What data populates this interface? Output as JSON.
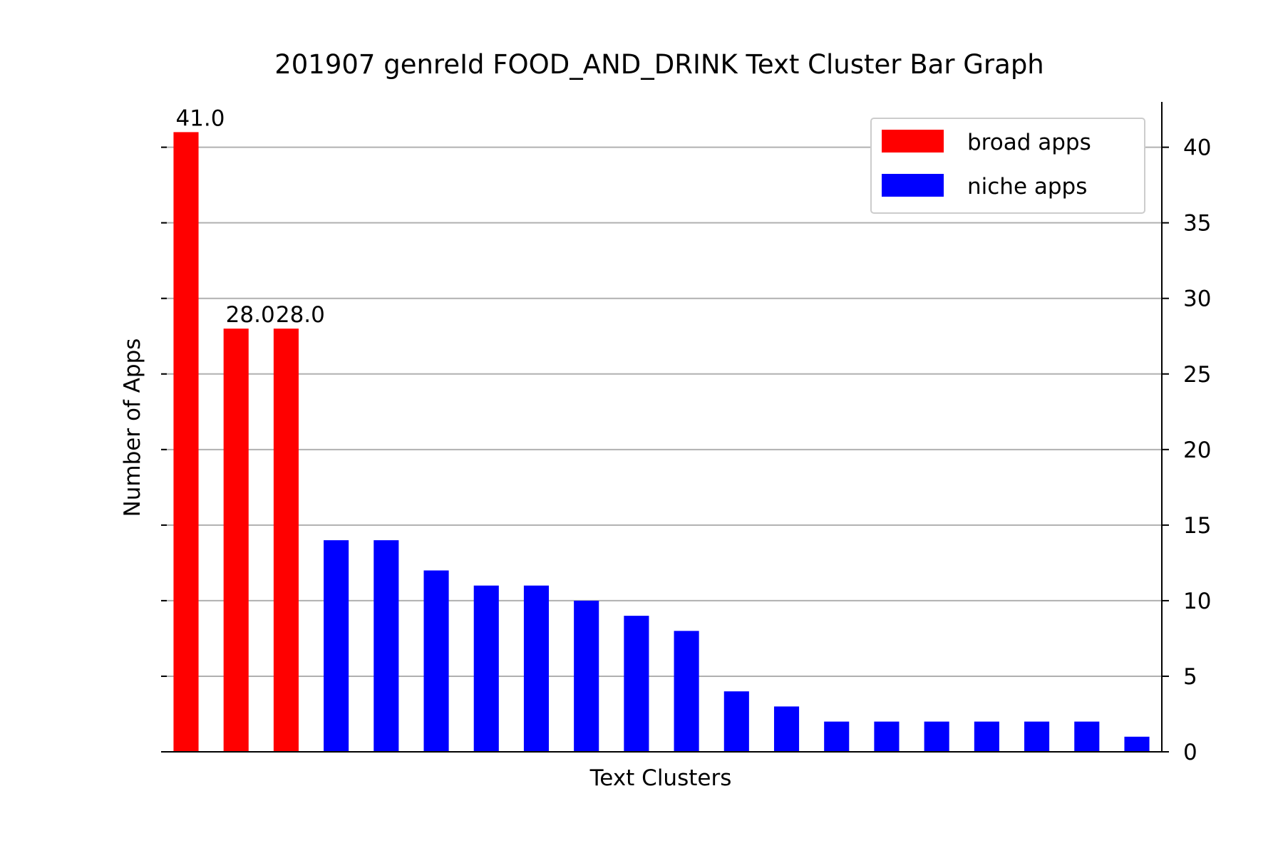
{
  "chart_data": {
    "type": "bar",
    "title": "201907 genreId FOOD_AND_DRINK Text Cluster Bar Graph",
    "xlabel": "Text Clusters",
    "ylabel": "Number of Apps",
    "ylim": [
      0,
      43
    ],
    "yticks": [
      "0",
      "5",
      "10",
      "15",
      "20",
      "25",
      "30",
      "35",
      "40"
    ],
    "ytick_values": [
      0,
      5,
      10,
      15,
      20,
      25,
      30,
      35,
      40
    ],
    "y_axis_side": "right",
    "grid": "horizontal",
    "legend_position": "top-right",
    "values": [
      41,
      28,
      28,
      14,
      14,
      12,
      11,
      11,
      10,
      9,
      8,
      4,
      3,
      2,
      2,
      2,
      2,
      2,
      2,
      1
    ],
    "groups": [
      "broad",
      "broad",
      "broad",
      "niche",
      "niche",
      "niche",
      "niche",
      "niche",
      "niche",
      "niche",
      "niche",
      "niche",
      "niche",
      "niche",
      "niche",
      "niche",
      "niche",
      "niche",
      "niche",
      "niche"
    ],
    "data_labels": [
      {
        "index": 0,
        "text": "41.0"
      },
      {
        "index": 1,
        "text": "28.0"
      },
      {
        "index": 2,
        "text": "28.0"
      }
    ],
    "series": [
      {
        "name": "broad apps",
        "color": "#ff0000"
      },
      {
        "name": "niche apps",
        "color": "#0000ff"
      }
    ],
    "grid_color": "#b0b0b0",
    "legend_border_color": "#cccccc"
  }
}
